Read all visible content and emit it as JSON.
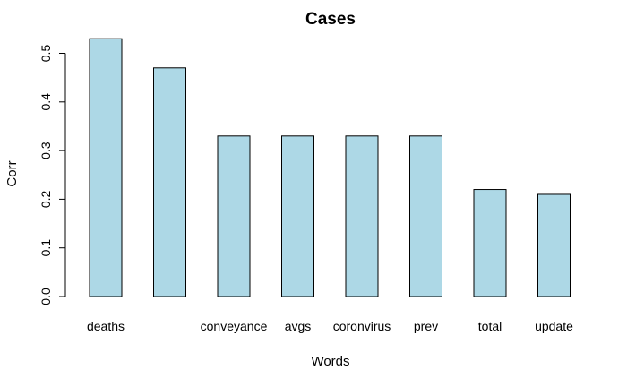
{
  "chart_data": {
    "type": "bar",
    "title": "Cases",
    "xlabel": "Words",
    "ylabel": "Corr",
    "categories": [
      "deaths",
      "",
      "conveyance",
      "avgs",
      "coronvirus",
      "prev",
      "total",
      "update"
    ],
    "values": [
      0.53,
      0.47,
      0.33,
      0.33,
      0.33,
      0.33,
      0.22,
      0.21
    ],
    "ylim": [
      0,
      0.55
    ],
    "yticks": [
      0.0,
      0.1,
      0.2,
      0.3,
      0.4,
      0.5
    ],
    "ytick_labels": [
      "0.0",
      "0.1",
      "0.2",
      "0.3",
      "0.4",
      "0.5"
    ],
    "bar_color": "#add8e6",
    "grid": false
  }
}
